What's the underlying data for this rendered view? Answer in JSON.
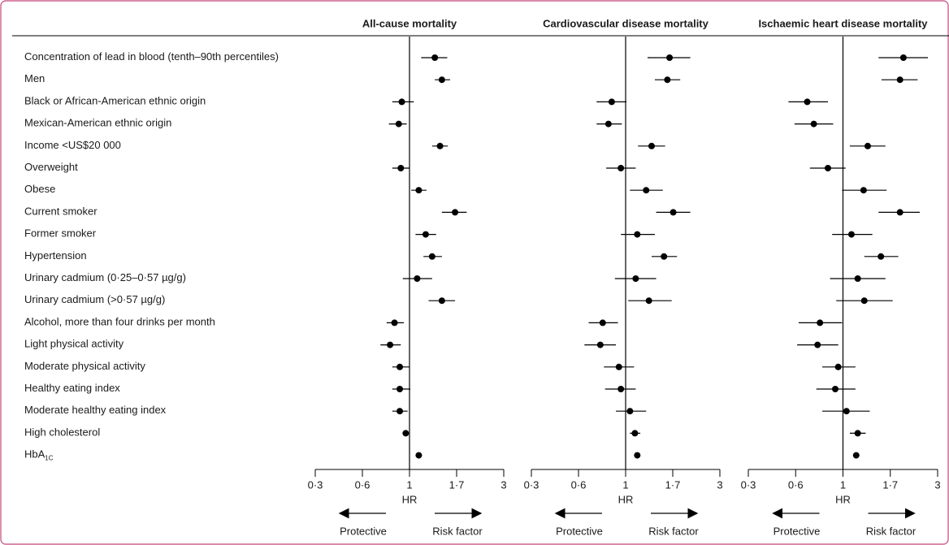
{
  "chart_data": {
    "type": "forest",
    "categories": [
      "Concentration of lead in blood (tenth–90th percentiles)",
      "Men",
      "Black or African-American ethnic origin",
      "Mexican-American ethnic origin",
      "Income <US$20 000",
      "Overweight",
      "Obese",
      "Current smoker",
      "Former smoker",
      "Hypertension",
      "Urinary cadmium (0·25–0·57 µg/g)",
      "Urinary cadmium (>0·57 µg/g)",
      "Alcohol, more than four drinks per month",
      "Light physical activity",
      "Moderate physical activity",
      "Healthy eating index",
      "Moderate healthy eating index",
      "High cholesterol",
      "HbA"
    ],
    "category_subscripts": {
      "18": "1C"
    },
    "xlim": [
      0.3,
      3
    ],
    "xticks": [
      {
        "value": 0.3,
        "label": "0·3"
      },
      {
        "value": 0.6,
        "label": "0·6"
      },
      1,
      {
        "value": 1.7,
        "label": "1·7"
      },
      3
    ],
    "xscale": "log",
    "reference": 1,
    "xlabel": "HR",
    "left_arrow_label": "Protective",
    "right_arrow_label": "Risk factor",
    "color": "#000000",
    "panels": [
      {
        "title": "All-cause mortality",
        "hr": [
          1.33,
          1.44,
          0.92,
          0.89,
          1.41,
          0.91,
          1.11,
          1.67,
          1.2,
          1.29,
          1.09,
          1.44,
          0.85,
          0.81,
          0.9,
          0.9,
          0.9,
          0.96,
          1.11
        ],
        "lower": [
          1.14,
          1.33,
          0.83,
          0.8,
          1.29,
          0.83,
          1.02,
          1.44,
          1.07,
          1.17,
          0.93,
          1.24,
          0.78,
          0.73,
          0.83,
          0.83,
          0.83,
          0.93,
          1.09
        ],
        "upper": [
          1.53,
          1.58,
          1.05,
          0.97,
          1.54,
          1.0,
          1.21,
          1.92,
          1.35,
          1.44,
          1.29,
          1.67,
          0.94,
          0.91,
          1.0,
          1.01,
          0.98,
          0.99,
          1.13
        ]
      },
      {
        "title": "Cardiovascular disease mortality",
        "hr": [
          1.64,
          1.6,
          0.86,
          0.83,
          1.34,
          0.95,
          1.26,
          1.71,
          1.14,
          1.54,
          1.12,
          1.3,
          0.78,
          0.76,
          0.93,
          0.95,
          1.05,
          1.11,
          1.14
        ],
        "lower": [
          1.28,
          1.39,
          0.73,
          0.73,
          1.15,
          0.81,
          1.05,
          1.41,
          0.95,
          1.34,
          0.89,
          1.03,
          0.67,
          0.64,
          0.79,
          0.8,
          0.9,
          1.05,
          1.11
        ],
        "upper": [
          2.1,
          1.86,
          1.01,
          0.96,
          1.56,
          1.12,
          1.52,
          2.1,
          1.39,
          1.79,
          1.41,
          1.68,
          0.92,
          0.9,
          1.1,
          1.12,
          1.26,
          1.18,
          1.17
        ]
      },
      {
        "title": "Ischaemic heart disease mortality",
        "hr": [
          1.99,
          1.91,
          0.68,
          0.73,
          1.32,
          0.85,
          1.26,
          1.91,
          1.1,
          1.53,
          1.18,
          1.27,
          0.78,
          0.76,
          0.95,
          0.92,
          1.04,
          1.18,
          1.16
        ],
        "lower": [
          1.49,
          1.54,
          0.54,
          0.59,
          1.08,
          0.7,
          0.99,
          1.49,
          0.89,
          1.27,
          0.87,
          0.93,
          0.62,
          0.61,
          0.8,
          0.75,
          0.8,
          1.08,
          1.12
        ],
        "upper": [
          2.67,
          2.36,
          0.85,
          0.9,
          1.61,
          1.03,
          1.63,
          2.42,
          1.39,
          1.87,
          1.61,
          1.75,
          0.99,
          0.95,
          1.15,
          1.15,
          1.35,
          1.29,
          1.2
        ]
      }
    ]
  }
}
